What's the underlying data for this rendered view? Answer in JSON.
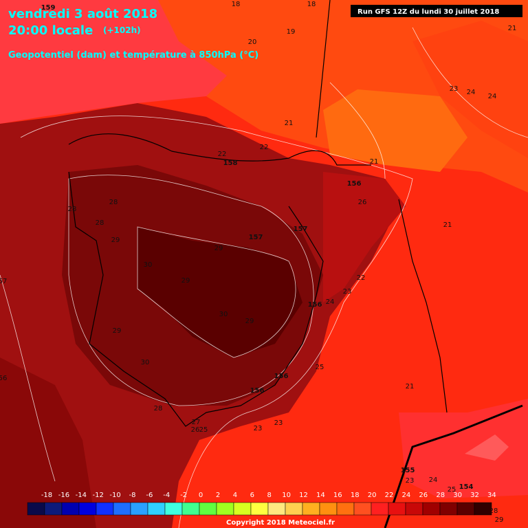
{
  "header": {
    "title": "vendredi 3 août 2018",
    "time": "20:00 locale",
    "lead": "(+102h)",
    "subtitle": "Geopotentiel (dam) et température à 850hPa (°C)",
    "run": "Run GFS 12Z du lundi 30 juillet 2018"
  },
  "map": {
    "labels": [
      "159",
      "18",
      "18",
      "19",
      "20",
      "21",
      "23",
      "24",
      "24",
      "21",
      "22",
      "22",
      "158",
      "21",
      "156",
      "26",
      "28",
      "28",
      "28",
      "21",
      "157",
      "157",
      "29",
      "29",
      "30",
      "57",
      "29",
      "22",
      "23",
      "24",
      "156",
      "30",
      "29",
      "29",
      "30",
      "25",
      "156",
      "56",
      "21",
      "156",
      "28",
      "27",
      "23",
      "26",
      "25",
      "23",
      "155",
      "23",
      "24",
      "154",
      "25",
      "28",
      "29"
    ]
  },
  "legend": {
    "values": [
      -18,
      -16,
      -14,
      -12,
      -10,
      -8,
      -6,
      -4,
      -2,
      0,
      2,
      4,
      6,
      8,
      10,
      12,
      14,
      16,
      18,
      20,
      22,
      24,
      26,
      28,
      30,
      32,
      34
    ],
    "colors": [
      "#0a0a4a",
      "#0d1a7a",
      "#0000b0",
      "#0000e0",
      "#1030ff",
      "#1e6eff",
      "#2aa0ff",
      "#30d0ff",
      "#40ffe0",
      "#40ff90",
      "#60ff40",
      "#a0ff20",
      "#d8ff20",
      "#ffff40",
      "#ffe880",
      "#ffd050",
      "#ffb020",
      "#ff9010",
      "#ff7010",
      "#ff5020",
      "#ff2020",
      "#e81010",
      "#c80808",
      "#a00000",
      "#800000",
      "#5a0000",
      "#300000"
    ]
  },
  "footer": {
    "copyright": "Copyright 2018 Meteociel.fr"
  }
}
